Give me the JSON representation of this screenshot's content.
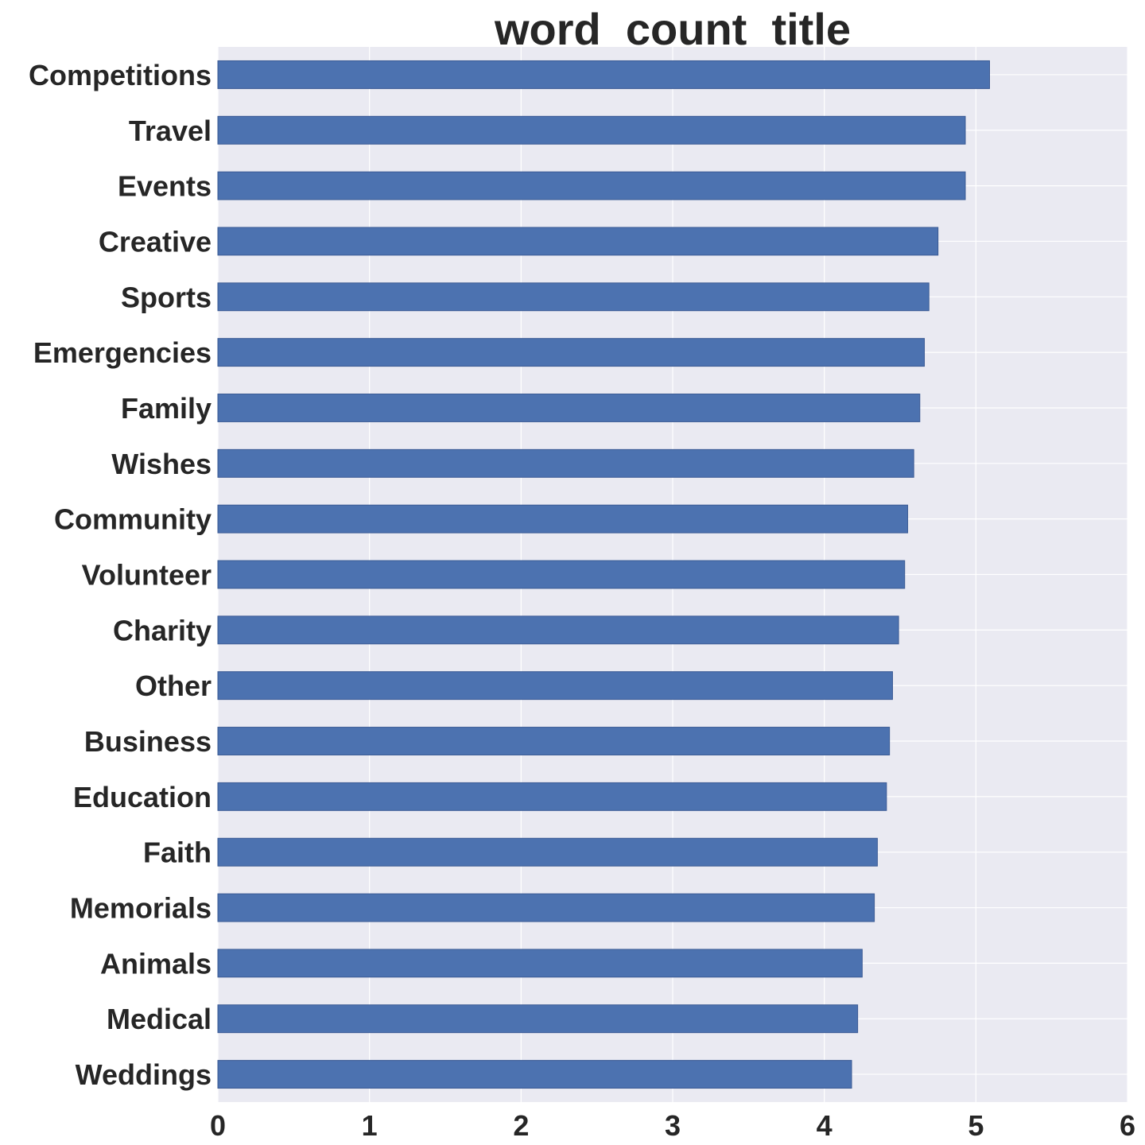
{
  "chart_data": {
    "type": "bar",
    "orientation": "horizontal",
    "title": "word_count_title",
    "xlabel": "",
    "ylabel": "",
    "xlim": [
      0,
      6
    ],
    "xticks": [
      0,
      1,
      2,
      3,
      4,
      5,
      6
    ],
    "grid": true,
    "bar_color": "#4c72b0",
    "background_color": "#eaeaf2",
    "categories": [
      "Competitions",
      "Travel",
      "Events",
      "Creative",
      "Sports",
      "Emergencies",
      "Family",
      "Wishes",
      "Community",
      "Volunteer",
      "Charity",
      "Other",
      "Business",
      "Education",
      "Faith",
      "Memorials",
      "Animals",
      "Medical",
      "Weddings"
    ],
    "values": [
      5.09,
      4.93,
      4.93,
      4.75,
      4.69,
      4.66,
      4.63,
      4.59,
      4.55,
      4.53,
      4.49,
      4.45,
      4.43,
      4.41,
      4.35,
      4.33,
      4.25,
      4.22,
      4.18
    ]
  }
}
